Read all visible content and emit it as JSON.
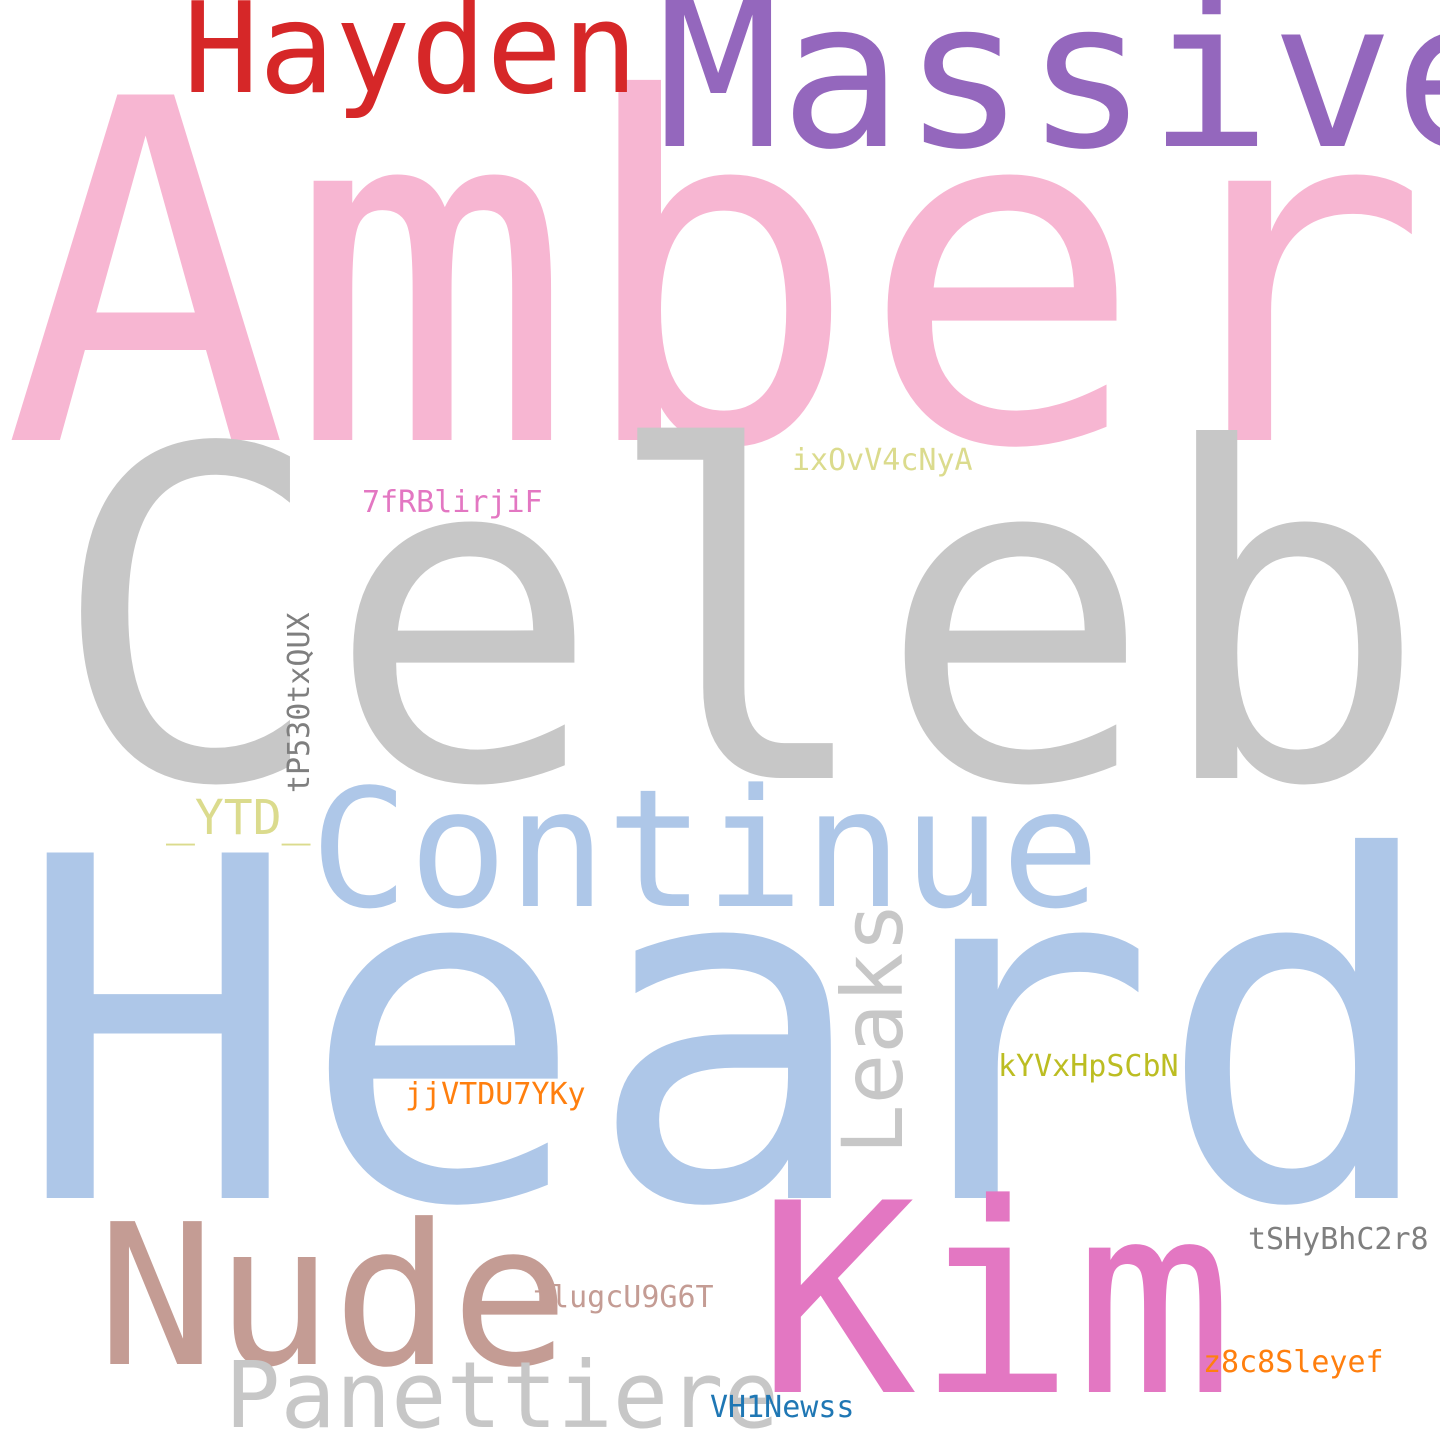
{
  "words": [
    {
      "text": "Amber",
      "color": "#f7b6d2",
      "rotated": false
    },
    {
      "text": "Celeb",
      "color": "#c7c7c7",
      "rotated": false
    },
    {
      "text": "Heard",
      "color": "#aec7e8",
      "rotated": false
    },
    {
      "text": "Massive",
      "color": "#9467bd",
      "rotated": false
    },
    {
      "text": "Hayden",
      "color": "#d62728",
      "rotated": false
    },
    {
      "text": "Continue",
      "color": "#aec7e8",
      "rotated": false
    },
    {
      "text": "Kim",
      "color": "#e377c2",
      "rotated": false
    },
    {
      "text": "Nude",
      "color": "#c49c94",
      "rotated": false
    },
    {
      "text": "Panettiere",
      "color": "#c7c7c7",
      "rotated": false
    },
    {
      "text": "Leaks",
      "color": "#c7c7c7",
      "rotated": true
    },
    {
      "text": "_YTD_",
      "color": "#dbdb8d",
      "rotated": false
    },
    {
      "text": "tP530txQUX",
      "color": "#7f7f7f",
      "rotated": true
    },
    {
      "text": "ixOvV4cNyA",
      "color": "#dbdb8d",
      "rotated": false
    },
    {
      "text": "7fRBlirjiF",
      "color": "#e377c2",
      "rotated": false
    },
    {
      "text": "kYVxHpSCbN",
      "color": "#bcbd22",
      "rotated": false
    },
    {
      "text": "jjVTDU7YKy",
      "color": "#ff7f0e",
      "rotated": false
    },
    {
      "text": "tSHyBhC2r8",
      "color": "#7f7f7f",
      "rotated": false
    },
    {
      "text": "tlugcU9G6T",
      "color": "#c49c94",
      "rotated": false
    },
    {
      "text": "z8c8Sleyef",
      "color": "#ff7f0e",
      "rotated": false
    },
    {
      "text": "VH1Newss",
      "color": "#1f77b4",
      "rotated": false
    }
  ]
}
